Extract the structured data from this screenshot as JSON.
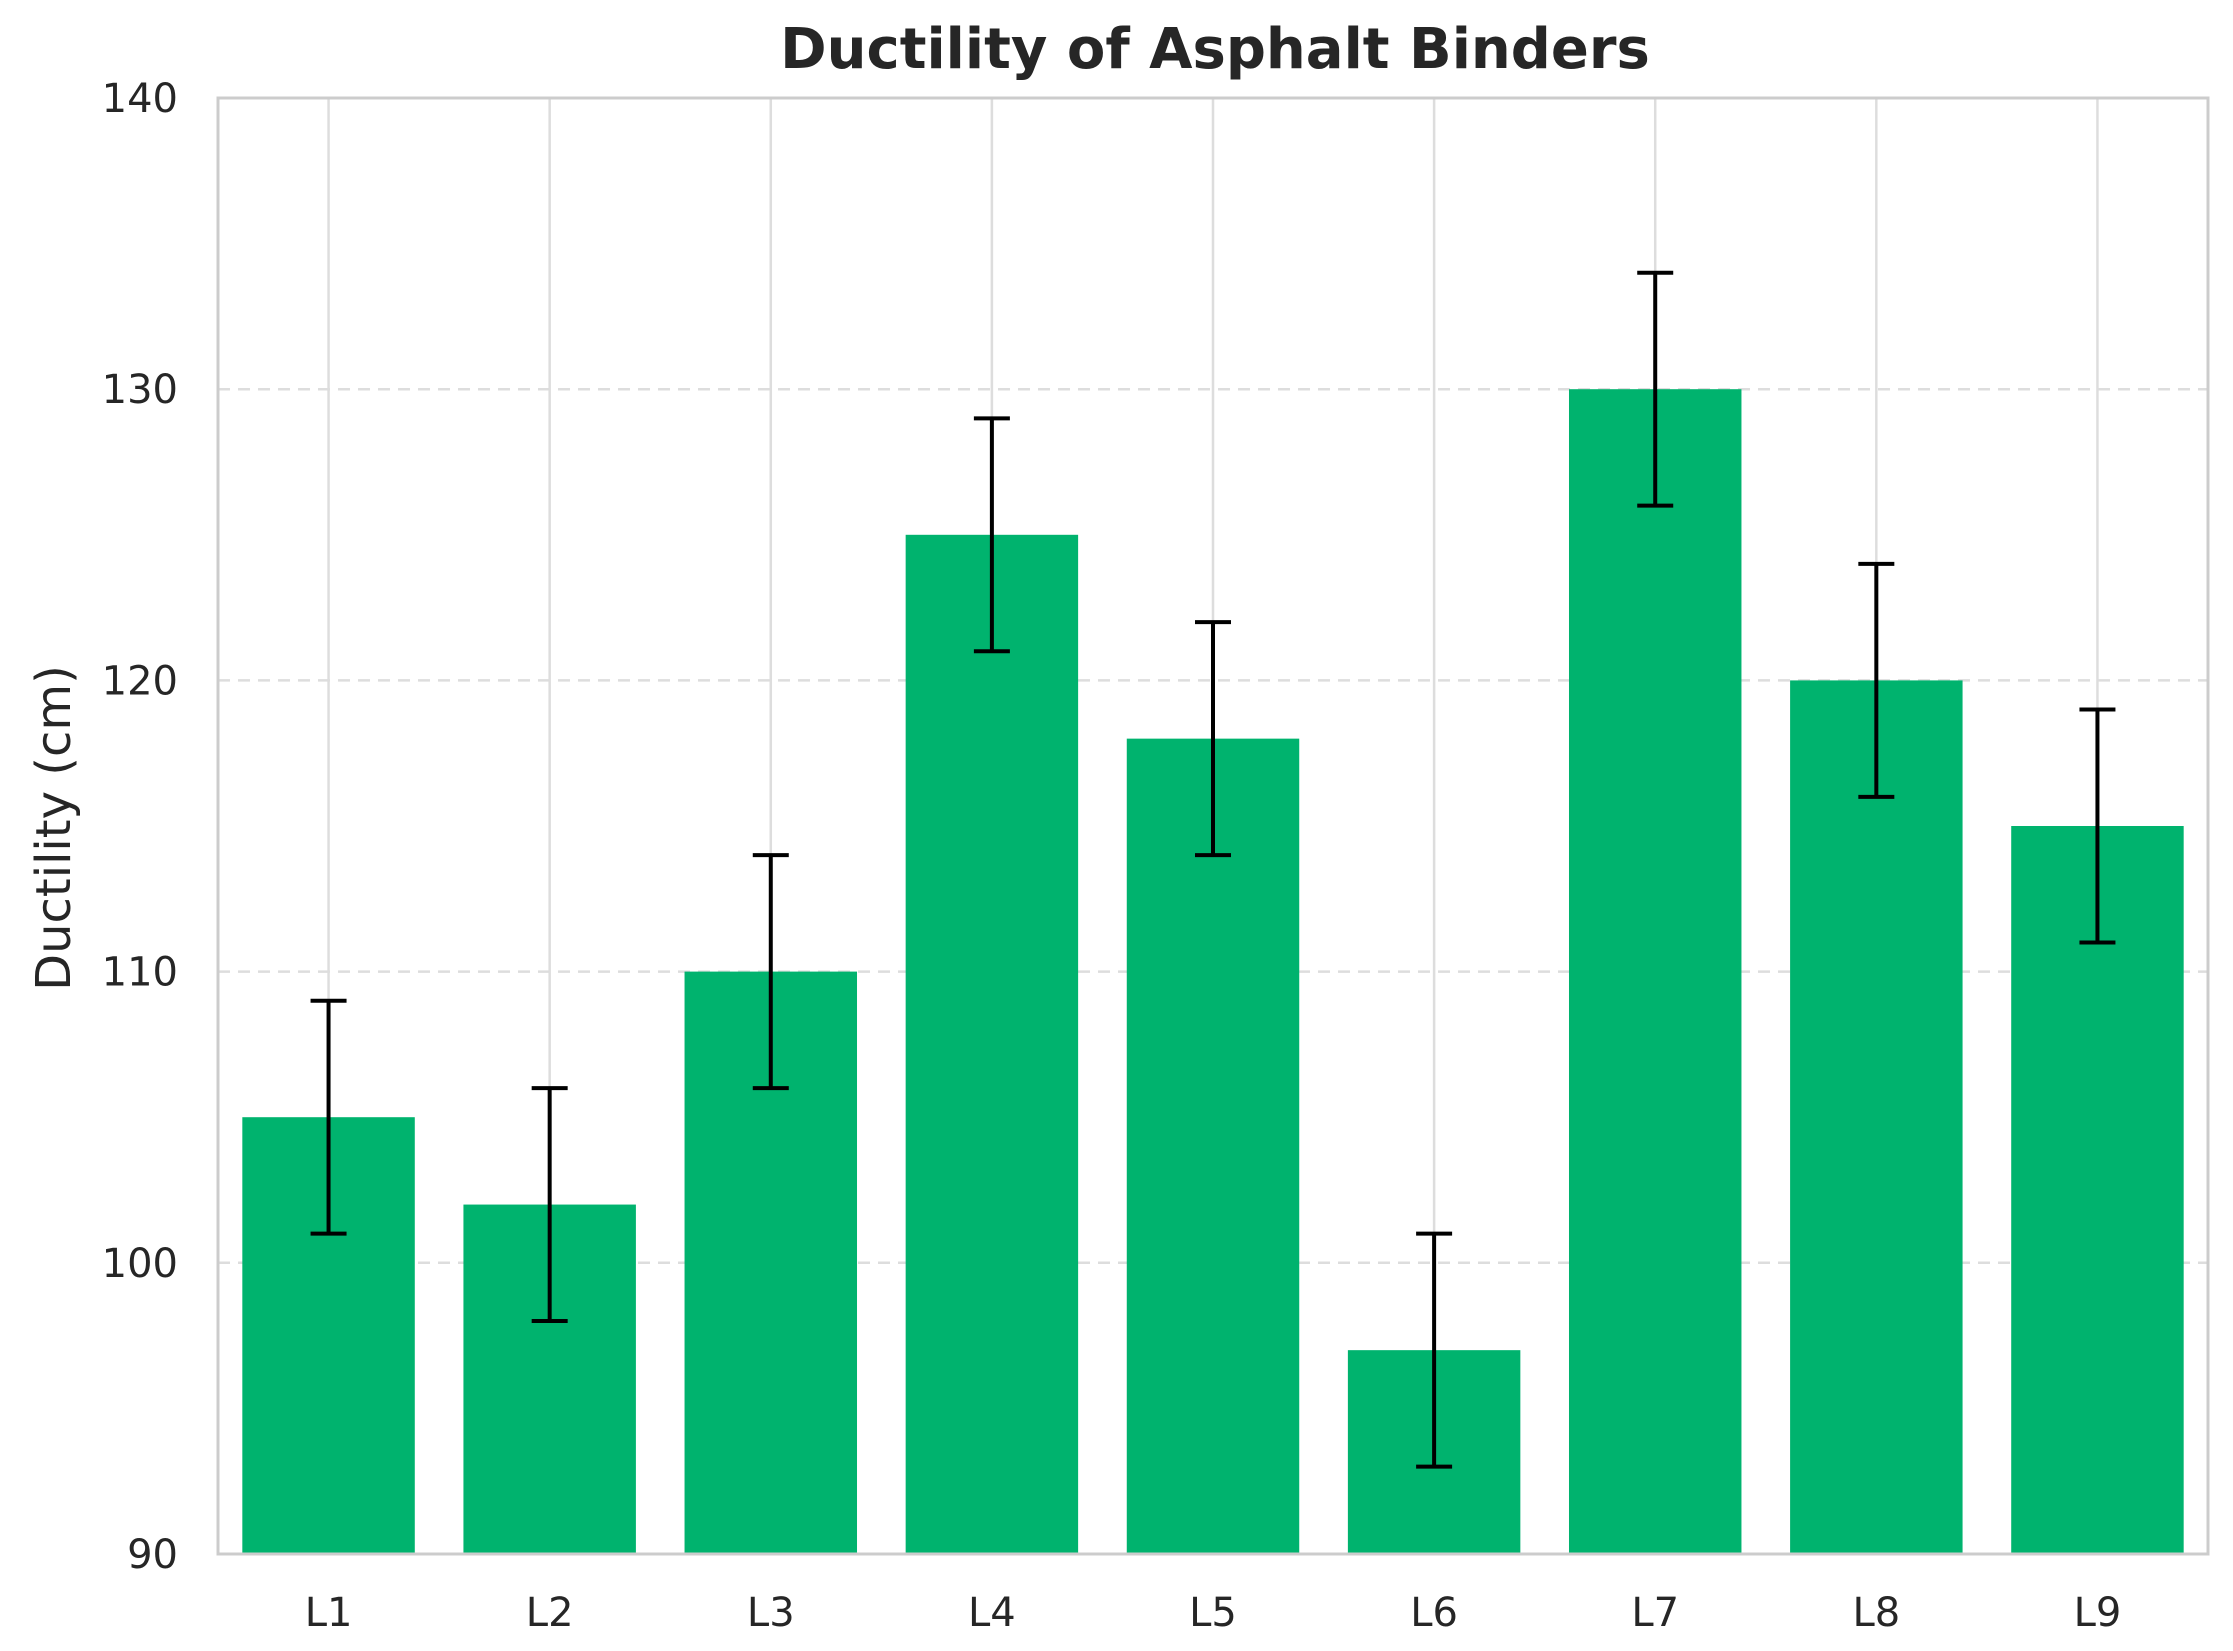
{
  "chart_data": {
    "type": "bar",
    "title": "Ductility of Asphalt Binders",
    "xlabel": "",
    "ylabel": "Ductility (cm)",
    "categories": [
      "L1",
      "L2",
      "L3",
      "L4",
      "L5",
      "L6",
      "L7",
      "L8",
      "L9"
    ],
    "values": [
      105,
      102,
      110,
      125,
      118,
      97,
      130,
      120,
      115
    ],
    "error": [
      4,
      4,
      4,
      4,
      4,
      4,
      4,
      4,
      4
    ],
    "ylim": [
      90,
      140
    ],
    "yticks": [
      90,
      100,
      110,
      120,
      130,
      140
    ],
    "grid": {
      "x": "solid",
      "y": "dashed"
    },
    "colors": {
      "bar": "#00b36e",
      "error_bar": "#000000",
      "grid": "#dddddd",
      "frame": "#cccccc"
    }
  }
}
